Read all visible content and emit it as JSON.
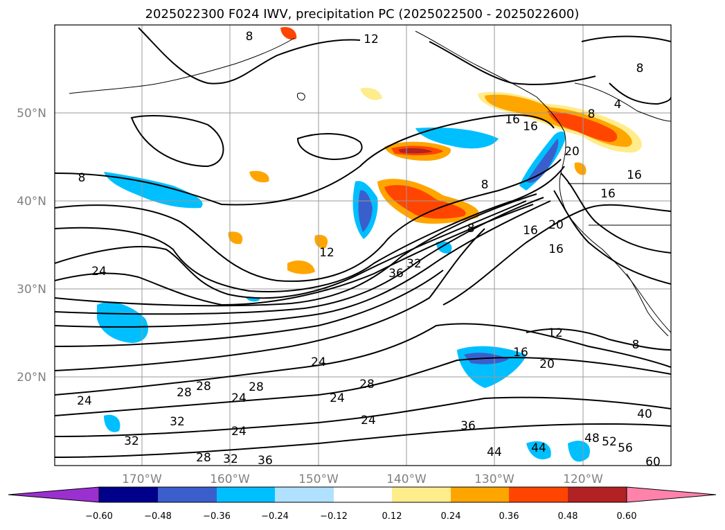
{
  "title": "2025022300 F024 IWV, precipitation PC (2025022500 - 2025022600)",
  "axes": {
    "lat_labels": [
      "50°N",
      "40°N",
      "30°N",
      "20°N"
    ],
    "lon_labels": [
      "170°W",
      "160°W",
      "150°W",
      "140°W",
      "130°W",
      "120°W"
    ]
  },
  "colorbar": {
    "ticks": [
      "−0.60",
      "−0.48",
      "−0.36",
      "−0.24",
      "−0.12",
      "0.12",
      "0.24",
      "0.36",
      "0.48",
      "0.60"
    ],
    "colors": {
      "under": "#9b30d0",
      "bins": [
        "#00008b",
        "#3a5fcd",
        "#00bfff",
        "#b0e2ff",
        "#ffffff",
        "#ffec8b",
        "#ffa500",
        "#ff4500",
        "#b22222"
      ],
      "over": "#ff82ab"
    }
  },
  "contour_labels": [
    "12",
    "8",
    "8",
    "4",
    "16",
    "16",
    "8",
    "20",
    "8",
    "16",
    "16",
    "20",
    "16",
    "24",
    "12",
    "36",
    "32",
    "8",
    "24",
    "24",
    "28",
    "24",
    "24",
    "28",
    "28",
    "28",
    "32",
    "24",
    "32",
    "28",
    "32",
    "36",
    "24",
    "36",
    "44",
    "44",
    "48",
    "52",
    "56",
    "40",
    "60",
    "12",
    "16",
    "20",
    "8",
    "8",
    "16"
  ]
}
